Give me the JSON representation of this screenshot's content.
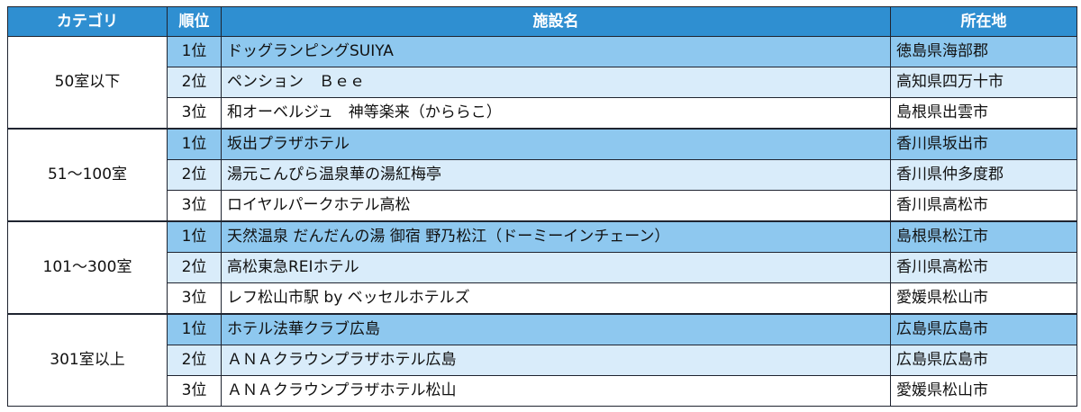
{
  "headers": {
    "category": "カテゴリ",
    "rank": "順位",
    "facility": "施設名",
    "location": "所在地"
  },
  "groups": [
    {
      "category": "50室以下",
      "rows": [
        {
          "rank": "1位",
          "facility": "ドッグランピングSUIYA",
          "location": "徳島県海部郡"
        },
        {
          "rank": "2位",
          "facility": "ペンション　Ｂｅｅ",
          "location": "高知県四万十市"
        },
        {
          "rank": "3位",
          "facility": "和オーベルジュ　神等楽来（かららこ）",
          "location": "島根県出雲市"
        }
      ]
    },
    {
      "category": "51～100室",
      "rows": [
        {
          "rank": "1位",
          "facility": "坂出プラザホテル",
          "location": "香川県坂出市"
        },
        {
          "rank": "2位",
          "facility": "湯元こんぴら温泉華の湯紅梅亭",
          "location": "香川県仲多度郡"
        },
        {
          "rank": "3位",
          "facility": "ロイヤルパークホテル高松",
          "location": "香川県高松市"
        }
      ]
    },
    {
      "category": "101～300室",
      "rows": [
        {
          "rank": "1位",
          "facility": "天然温泉 だんだんの湯 御宿 野乃松江（ドーミーインチェーン）",
          "location": "島根県松江市"
        },
        {
          "rank": "2位",
          "facility": "高松東急REIホテル",
          "location": "香川県高松市"
        },
        {
          "rank": "3位",
          "facility": "レフ松山市駅 by ベッセルホテルズ",
          "location": "愛媛県松山市"
        }
      ]
    },
    {
      "category": "301室以上",
      "rows": [
        {
          "rank": "1位",
          "facility": "ホテル法華クラブ広島",
          "location": "広島県広島市"
        },
        {
          "rank": "2位",
          "facility": "ＡＮＡクラウンプラザホテル広島",
          "location": "広島県広島市"
        },
        {
          "rank": "3位",
          "facility": "ＡＮＡクラウンプラザホテル松山",
          "location": "愛媛県松山市"
        }
      ]
    }
  ],
  "colors": {
    "header": "#2f8fd1",
    "rank1": "#8ec8ef",
    "rank2": "#d9ecfa",
    "rank3": "#ffffff"
  }
}
